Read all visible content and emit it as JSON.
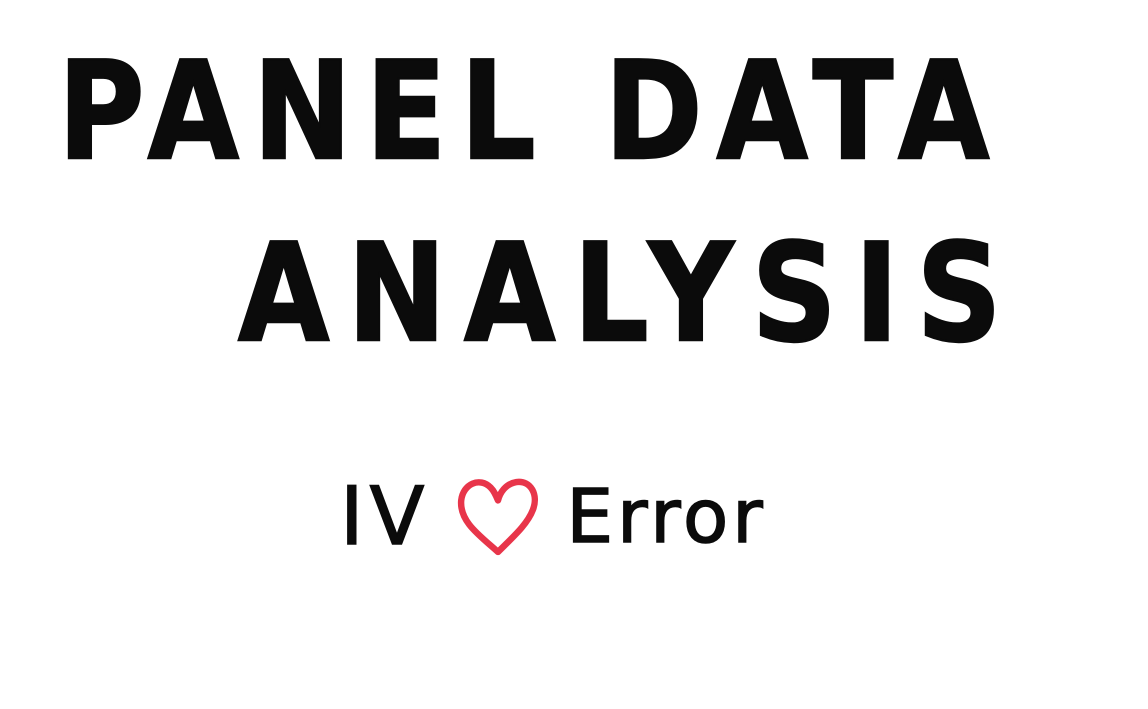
{
  "title": {
    "line1": "PANEL DATA",
    "line2": "ANALYSIS"
  },
  "subtitle": {
    "left": "IV",
    "heart_icon": "heart-icon",
    "heart_color": "#e8354a",
    "right": "Error"
  },
  "colors": {
    "ink": "#0b0b0b",
    "background": "#ffffff"
  }
}
